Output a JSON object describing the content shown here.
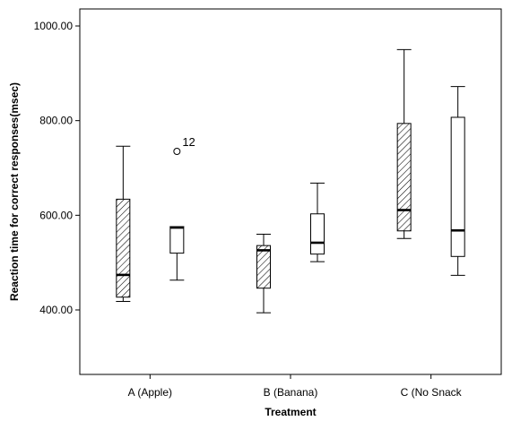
{
  "chart_data": {
    "type": "boxplot",
    "title": "",
    "xlabel": "Treatment",
    "ylabel": "Reaction time for correct responses(msec)",
    "ylim": [
      260,
      1030
    ],
    "yticks": [
      400,
      600,
      800,
      1000
    ],
    "ytick_labels": [
      "400.00",
      "600.00",
      "800.00",
      "1000.00"
    ],
    "grid": false,
    "legend": "none",
    "categories": [
      "A (Apple)",
      "B (Banana)",
      "C (No Snack"
    ],
    "series": [
      {
        "fill": "hatched",
        "boxes": [
          {
            "min": 418,
            "q1": 427,
            "median": 474,
            "q3": 634,
            "max": 746
          },
          {
            "min": 394,
            "q1": 446,
            "median": 526,
            "q3": 536,
            "max": 560
          },
          {
            "min": 551,
            "q1": 567,
            "median": 611,
            "q3": 794,
            "max": 950
          }
        ]
      },
      {
        "fill": "open",
        "boxes": [
          {
            "min": 463,
            "q1": 520,
            "median": 574,
            "q3": 576,
            "max": 576,
            "outliers": [
              {
                "value": 735,
                "label": "12"
              }
            ]
          },
          {
            "min": 502,
            "q1": 518,
            "median": 542,
            "q3": 603,
            "max": 668
          },
          {
            "min": 473,
            "q1": 513,
            "median": 568,
            "q3": 807,
            "max": 872
          }
        ]
      }
    ],
    "colors": {
      "line": "#000000",
      "fill": "#ffffff",
      "hatch": "#000000"
    }
  }
}
